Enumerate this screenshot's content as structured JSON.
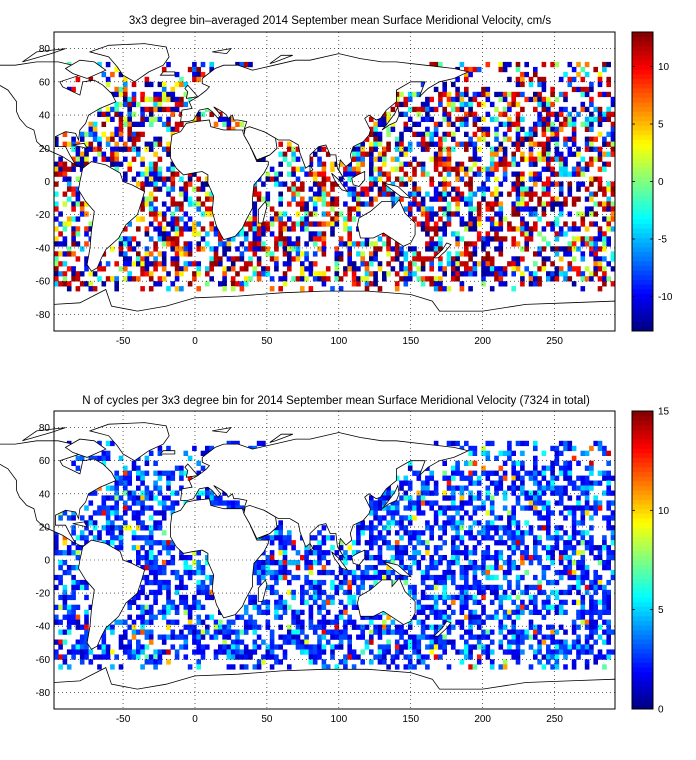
{
  "panels": [
    {
      "id": "velocity",
      "title": "3x3 degree bin–averaged 2014 September mean Surface Meridional Velocity, cm/s",
      "x_ticks": [
        "-50",
        "0",
        "50",
        "100",
        "150",
        "200",
        "250"
      ],
      "y_ticks": [
        "80",
        "60",
        "40",
        "20",
        "0",
        "-20",
        "-40",
        "-60",
        "-80"
      ],
      "colorbar_ticks": [
        "10",
        "5",
        "0",
        "-5",
        "-10"
      ],
      "colorbar_range": [
        -13,
        13
      ],
      "colormap": "jet",
      "seed": 17
    },
    {
      "id": "cycles",
      "title": "N of cycles per 3x3 degree bin for 2014 September mean Surface Meridional Velocity (7324 in total)",
      "x_ticks": [
        "-50",
        "0",
        "50",
        "100",
        "150",
        "200",
        "250"
      ],
      "y_ticks": [
        "80",
        "60",
        "40",
        "20",
        "0",
        "-20",
        "-40",
        "-60",
        "-80"
      ],
      "colorbar_ticks": [
        "15",
        "10",
        "5",
        "0"
      ],
      "colorbar_range": [
        0,
        15
      ],
      "colormap": "jet",
      "seed": 91
    }
  ],
  "map_extent": {
    "lon": [
      -98,
      292
    ],
    "lat": [
      -90,
      90
    ]
  },
  "bin_size_deg": 3,
  "grid": "dotted"
}
